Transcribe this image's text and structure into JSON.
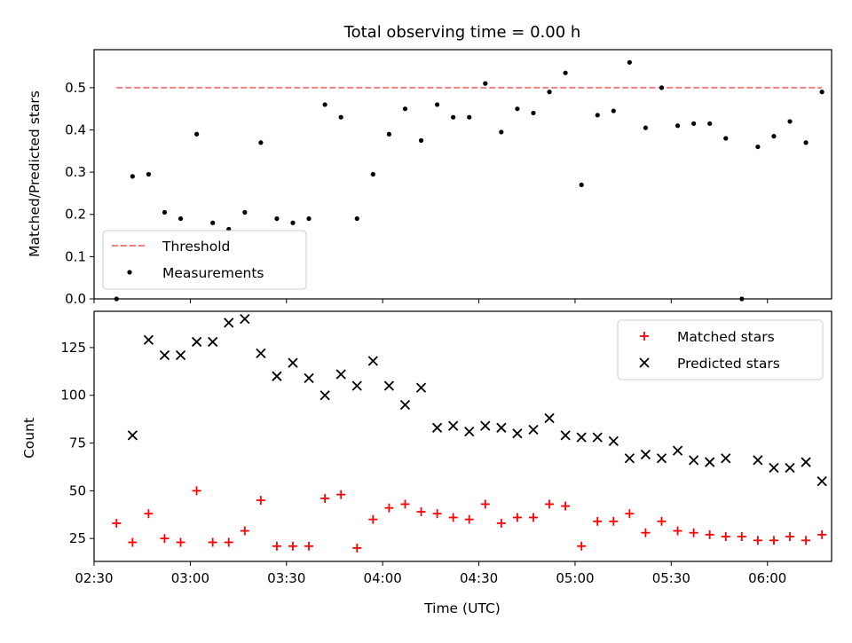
{
  "chart_data": [
    {
      "type": "scatter",
      "title": "Total observing time = 0.00 h",
      "ylabel": "Matched/Predicted stars",
      "xlabel": "",
      "ylim": [
        0,
        0.59
      ],
      "yticks": [
        "0.0",
        "0.1",
        "0.2",
        "0.3",
        "0.4",
        "0.5"
      ],
      "legend": {
        "placement": "lower-left",
        "entries": [
          "Threshold",
          "Measurements"
        ]
      },
      "threshold": {
        "name": "Threshold",
        "value": 0.5,
        "color": "#f08080",
        "style": "dashed",
        "x_start": "02:37",
        "x_end": "06:17"
      },
      "series": [
        {
          "name": "Measurements",
          "color": "#000000",
          "x": [
            "02:37",
            "02:42",
            "02:47",
            "02:52",
            "02:57",
            "03:02",
            "03:07",
            "03:12",
            "03:17",
            "03:22",
            "03:27",
            "03:32",
            "03:37",
            "03:42",
            "03:47",
            "03:52",
            "03:57",
            "04:02",
            "04:07",
            "04:12",
            "04:17",
            "04:22",
            "04:27",
            "04:32",
            "04:37",
            "04:42",
            "04:47",
            "04:52",
            "04:57",
            "05:02",
            "05:07",
            "05:12",
            "05:17",
            "05:22",
            "05:27",
            "05:32",
            "05:37",
            "05:42",
            "05:47",
            "05:52",
            "05:57",
            "06:02",
            "06:07",
            "06:12",
            "06:17"
          ],
          "y": [
            0.0,
            0.29,
            0.295,
            0.205,
            0.19,
            0.39,
            0.18,
            0.165,
            0.205,
            0.37,
            0.19,
            0.18,
            0.19,
            0.46,
            0.43,
            0.19,
            0.295,
            0.39,
            0.45,
            0.375,
            0.46,
            0.43,
            0.43,
            0.51,
            0.395,
            0.45,
            0.44,
            0.49,
            0.535,
            0.27,
            0.435,
            0.445,
            0.56,
            0.405,
            0.5,
            0.41,
            0.415,
            0.415,
            0.38,
            0.0,
            0.36,
            0.385,
            0.42,
            0.37,
            0.49
          ]
        }
      ]
    },
    {
      "type": "scatter",
      "title": "",
      "ylabel": "Count",
      "xlabel": "Time (UTC)",
      "ylim": [
        13,
        144
      ],
      "yticks": [
        "25",
        "50",
        "75",
        "100",
        "125"
      ],
      "xticks": [
        "02:30",
        "03:00",
        "03:30",
        "04:00",
        "04:30",
        "05:00",
        "05:30",
        "06:00"
      ],
      "legend": {
        "placement": "top-right",
        "entries": [
          "Matched stars",
          "Predicted stars"
        ]
      },
      "series": [
        {
          "name": "Matched stars",
          "color": "#ff0000",
          "marker": "+",
          "x": [
            "02:37",
            "02:42",
            "02:47",
            "02:52",
            "02:57",
            "03:02",
            "03:07",
            "03:12",
            "03:17",
            "03:22",
            "03:27",
            "03:32",
            "03:37",
            "03:42",
            "03:47",
            "03:52",
            "03:57",
            "04:02",
            "04:07",
            "04:12",
            "04:17",
            "04:22",
            "04:27",
            "04:32",
            "04:37",
            "04:42",
            "04:47",
            "04:52",
            "04:57",
            "05:02",
            "05:07",
            "05:12",
            "05:17",
            "05:22",
            "05:27",
            "05:32",
            "05:37",
            "05:42",
            "05:47",
            "05:52",
            "05:57",
            "06:02",
            "06:07",
            "06:12",
            "06:17"
          ],
          "y": [
            33,
            23,
            38,
            25,
            23,
            50,
            23,
            23,
            29,
            45,
            21,
            21,
            21,
            46,
            48,
            20,
            35,
            41,
            43,
            39,
            38,
            36,
            35,
            43,
            33,
            36,
            36,
            43,
            42,
            21,
            34,
            34,
            38,
            28,
            34,
            29,
            28,
            27,
            26,
            26,
            24,
            24,
            26,
            24,
            27
          ]
        },
        {
          "name": "Predicted stars",
          "color": "#000000",
          "marker": "x",
          "x": [
            "02:42",
            "02:47",
            "02:52",
            "02:57",
            "03:02",
            "03:07",
            "03:12",
            "03:17",
            "03:22",
            "03:27",
            "03:32",
            "03:37",
            "03:42",
            "03:47",
            "03:52",
            "03:57",
            "04:02",
            "04:07",
            "04:12",
            "04:17",
            "04:22",
            "04:27",
            "04:32",
            "04:37",
            "04:42",
            "04:47",
            "04:52",
            "04:57",
            "05:02",
            "05:07",
            "05:12",
            "05:17",
            "05:22",
            "05:27",
            "05:32",
            "05:37",
            "05:42",
            "05:47",
            "05:57",
            "06:02",
            "06:07",
            "06:12",
            "06:17"
          ],
          "y": [
            79,
            129,
            121,
            121,
            128,
            128,
            138,
            140,
            122,
            110,
            117,
            109,
            100,
            111,
            105,
            118,
            105,
            95,
            104,
            83,
            84,
            81,
            84,
            83,
            80,
            82,
            88,
            79,
            78,
            78,
            76,
            67,
            69,
            67,
            71,
            66,
            65,
            67,
            66,
            62,
            62,
            65,
            55
          ]
        }
      ]
    }
  ]
}
